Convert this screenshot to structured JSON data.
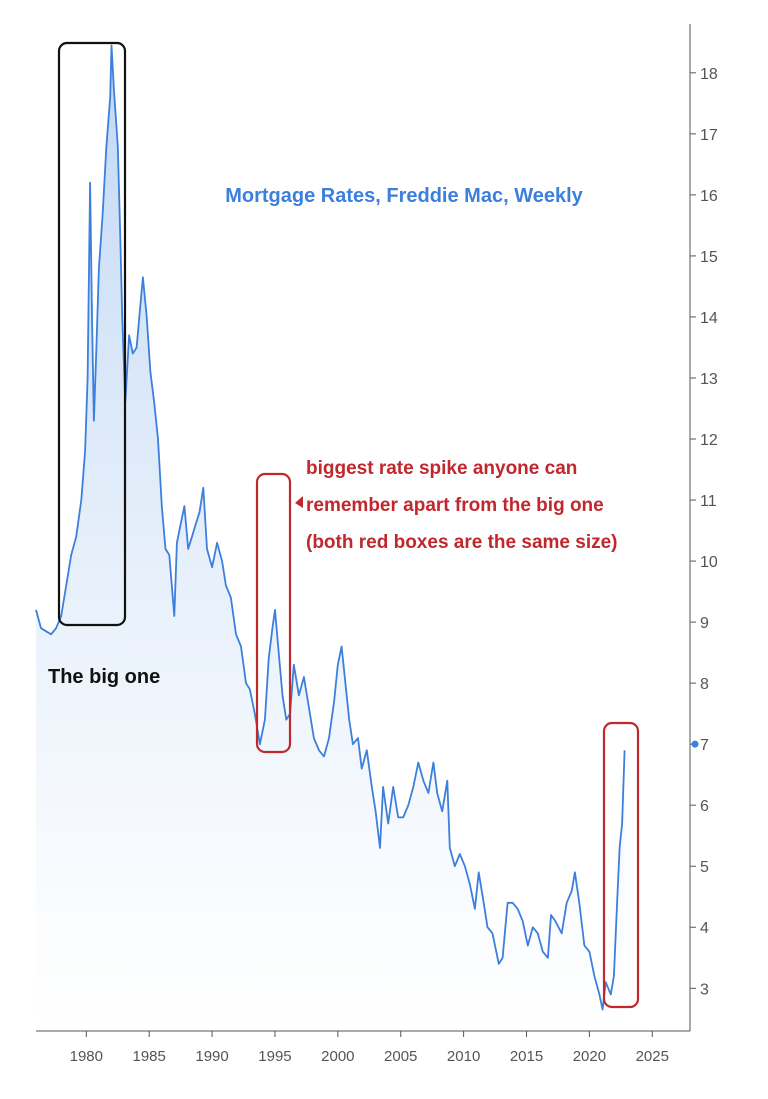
{
  "chart_data": {
    "type": "area",
    "title": "Mortgage Rates, Freddie Mac, Weekly",
    "xlabel": "",
    "ylabel": "",
    "xlim": [
      1976,
      2028
    ],
    "ylim": [
      2.3,
      18.8
    ],
    "x_ticks": [
      1980,
      1985,
      1990,
      1995,
      2000,
      2005,
      2010,
      2015,
      2020,
      2025
    ],
    "y_ticks": [
      3,
      4,
      5,
      6,
      7,
      8,
      9,
      10,
      11,
      12,
      13,
      14,
      15,
      16,
      17,
      18
    ],
    "y_axis_side": "right",
    "grid": false,
    "legend": "none",
    "last_value": 7,
    "colors": {
      "line": "#3c7fdc",
      "area_top": "#c7dcf5",
      "annotation_red": "#c0282d",
      "annotation_black": "#111111",
      "axis": "#555555"
    },
    "series": [
      {
        "values": [
          [
            1976.0,
            9.2
          ],
          [
            1976.4,
            8.9
          ],
          [
            1976.8,
            8.85
          ],
          [
            1977.2,
            8.8
          ],
          [
            1977.6,
            8.9
          ],
          [
            1978.0,
            9.1
          ],
          [
            1978.4,
            9.6
          ],
          [
            1978.8,
            10.1
          ],
          [
            1979.2,
            10.4
          ],
          [
            1979.6,
            11.0
          ],
          [
            1979.9,
            11.8
          ],
          [
            1980.1,
            13.0
          ],
          [
            1980.3,
            16.2
          ],
          [
            1980.45,
            14.0
          ],
          [
            1980.6,
            12.3
          ],
          [
            1980.8,
            13.5
          ],
          [
            1981.0,
            14.8
          ],
          [
            1981.3,
            15.7
          ],
          [
            1981.6,
            16.8
          ],
          [
            1981.9,
            17.6
          ],
          [
            1982.0,
            18.45
          ],
          [
            1982.2,
            17.7
          ],
          [
            1982.5,
            16.8
          ],
          [
            1982.7,
            15.3
          ],
          [
            1982.85,
            14.0
          ],
          [
            1983.1,
            12.6
          ],
          [
            1983.4,
            13.7
          ],
          [
            1983.7,
            13.4
          ],
          [
            1984.0,
            13.5
          ],
          [
            1984.3,
            14.2
          ],
          [
            1984.5,
            14.65
          ],
          [
            1984.8,
            14.0
          ],
          [
            1985.1,
            13.1
          ],
          [
            1985.4,
            12.6
          ],
          [
            1985.7,
            12.0
          ],
          [
            1986.0,
            10.9
          ],
          [
            1986.3,
            10.2
          ],
          [
            1986.6,
            10.1
          ],
          [
            1987.0,
            9.1
          ],
          [
            1987.2,
            10.3
          ],
          [
            1987.5,
            10.6
          ],
          [
            1987.8,
            10.9
          ],
          [
            1988.1,
            10.2
          ],
          [
            1988.4,
            10.4
          ],
          [
            1988.7,
            10.6
          ],
          [
            1989.0,
            10.8
          ],
          [
            1989.3,
            11.2
          ],
          [
            1989.6,
            10.2
          ],
          [
            1990.0,
            9.9
          ],
          [
            1990.4,
            10.3
          ],
          [
            1990.8,
            10.0
          ],
          [
            1991.1,
            9.6
          ],
          [
            1991.5,
            9.4
          ],
          [
            1991.9,
            8.8
          ],
          [
            1992.3,
            8.6
          ],
          [
            1992.7,
            8.0
          ],
          [
            1993.0,
            7.9
          ],
          [
            1993.4,
            7.5
          ],
          [
            1993.8,
            7.0
          ],
          [
            1994.2,
            7.4
          ],
          [
            1994.5,
            8.4
          ],
          [
            1994.8,
            8.9
          ],
          [
            1995.0,
            9.2
          ],
          [
            1995.3,
            8.5
          ],
          [
            1995.6,
            7.8
          ],
          [
            1995.9,
            7.4
          ],
          [
            1996.2,
            7.5
          ],
          [
            1996.5,
            8.3
          ],
          [
            1996.9,
            7.8
          ],
          [
            1997.3,
            8.1
          ],
          [
            1997.7,
            7.6
          ],
          [
            1998.1,
            7.1
          ],
          [
            1998.5,
            6.9
          ],
          [
            1998.9,
            6.8
          ],
          [
            1999.3,
            7.1
          ],
          [
            1999.7,
            7.7
          ],
          [
            2000.0,
            8.3
          ],
          [
            2000.3,
            8.6
          ],
          [
            2000.6,
            8.0
          ],
          [
            2000.9,
            7.4
          ],
          [
            2001.2,
            7.0
          ],
          [
            2001.6,
            7.1
          ],
          [
            2001.9,
            6.6
          ],
          [
            2002.3,
            6.9
          ],
          [
            2002.7,
            6.3
          ],
          [
            2003.0,
            5.9
          ],
          [
            2003.35,
            5.3
          ],
          [
            2003.6,
            6.3
          ],
          [
            2004.0,
            5.7
          ],
          [
            2004.4,
            6.3
          ],
          [
            2004.8,
            5.8
          ],
          [
            2005.2,
            5.8
          ],
          [
            2005.6,
            6.0
          ],
          [
            2006.0,
            6.3
          ],
          [
            2006.4,
            6.7
          ],
          [
            2006.8,
            6.4
          ],
          [
            2007.2,
            6.2
          ],
          [
            2007.6,
            6.7
          ],
          [
            2007.9,
            6.2
          ],
          [
            2008.3,
            5.9
          ],
          [
            2008.7,
            6.4
          ],
          [
            2008.9,
            5.3
          ],
          [
            2009.3,
            5.0
          ],
          [
            2009.7,
            5.2
          ],
          [
            2010.1,
            5.0
          ],
          [
            2010.5,
            4.7
          ],
          [
            2010.9,
            4.3
          ],
          [
            2011.2,
            4.9
          ],
          [
            2011.6,
            4.4
          ],
          [
            2011.9,
            4.0
          ],
          [
            2012.3,
            3.9
          ],
          [
            2012.8,
            3.4
          ],
          [
            2013.1,
            3.5
          ],
          [
            2013.5,
            4.4
          ],
          [
            2013.9,
            4.4
          ],
          [
            2014.3,
            4.3
          ],
          [
            2014.7,
            4.1
          ],
          [
            2015.1,
            3.7
          ],
          [
            2015.5,
            4.0
          ],
          [
            2015.9,
            3.9
          ],
          [
            2016.3,
            3.6
          ],
          [
            2016.7,
            3.5
          ],
          [
            2016.95,
            4.2
          ],
          [
            2017.3,
            4.1
          ],
          [
            2017.8,
            3.9
          ],
          [
            2018.2,
            4.4
          ],
          [
            2018.6,
            4.6
          ],
          [
            2018.85,
            4.9
          ],
          [
            2019.2,
            4.4
          ],
          [
            2019.6,
            3.7
          ],
          [
            2020.0,
            3.6
          ],
          [
            2020.4,
            3.2
          ],
          [
            2020.8,
            2.9
          ],
          [
            2021.05,
            2.65
          ],
          [
            2021.3,
            3.1
          ],
          [
            2021.7,
            2.9
          ],
          [
            2021.95,
            3.2
          ],
          [
            2022.2,
            4.4
          ],
          [
            2022.4,
            5.3
          ],
          [
            2022.6,
            5.7
          ],
          [
            2022.8,
            6.9
          ]
        ]
      }
    ],
    "annotations": {
      "big_one_label": "The big one",
      "spike_note_line1": "biggest rate spike anyone can",
      "spike_note_line2": "remember apart from the big one",
      "spike_note_line3": "(both red boxes are the same size)"
    }
  }
}
